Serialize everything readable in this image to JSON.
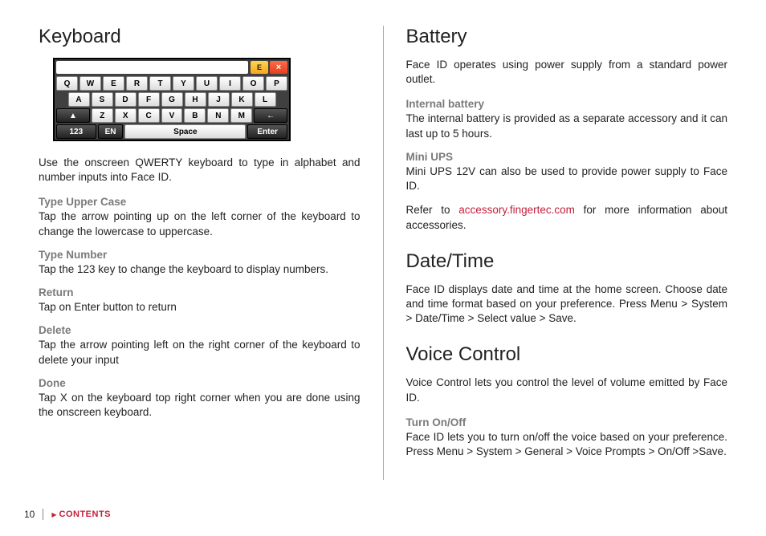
{
  "left": {
    "heading": "Keyboard",
    "keyboard": {
      "topE": "E",
      "topX": "×",
      "row1": [
        "Q",
        "W",
        "E",
        "R",
        "T",
        "Y",
        "U",
        "I",
        "O",
        "P"
      ],
      "row2": [
        "A",
        "S",
        "D",
        "F",
        "G",
        "H",
        "J",
        "K",
        "L"
      ],
      "row3Arrow": "▲",
      "row3": [
        "Z",
        "X",
        "C",
        "V",
        "B",
        "N",
        "M"
      ],
      "row3Back": "←",
      "row4_123": "123",
      "row4_en": "EN",
      "row4_space": "Space",
      "row4_enter": "Enter"
    },
    "intro": "Use the onscreen QWERTY keyboard to type in alphabet and number inputs into Face ID.",
    "subs": [
      {
        "title": "Type Upper Case",
        "text": "Tap the arrow pointing up on the left corner of the keyboard to change the lowercase to uppercase."
      },
      {
        "title": "Type Number",
        "text": "Tap the 123 key to change the keyboard to display numbers."
      },
      {
        "title": "Return",
        "text": "Tap on Enter button to return"
      },
      {
        "title": "Delete",
        "text": "Tap the arrow pointing left on the right corner of the keyboard to delete your input"
      },
      {
        "title": "Done",
        "text": "Tap X on the keyboard top right corner when you are done using the onscreen keyboard."
      }
    ]
  },
  "right": {
    "battery": {
      "heading": "Battery",
      "intro": "Face ID operates using power supply from a standard power outlet.",
      "subs": [
        {
          "title": "Internal battery",
          "text": "The internal battery is provided as a separate accessory and it can last up to 5 hours."
        },
        {
          "title": "Mini UPS",
          "text": "Mini UPS 12V can also be used to provide power supply to Face ID."
        }
      ],
      "refer_pre": "Refer to ",
      "refer_link": "accessory.fingertec.com",
      "refer_post": " for more information about accessories."
    },
    "datetime": {
      "heading": "Date/Time",
      "text": "Face ID displays date and time at the home screen. Choose date and time format based on your preference. Press Menu > System > Date/Time > Select value > Save."
    },
    "voice": {
      "heading": "Voice Control",
      "intro": "Voice Control lets you control the level of volume emitted by Face ID.",
      "subs": [
        {
          "title": "Turn On/Off",
          "text": "Face ID lets you to turn on/off the voice based on your preference. Press Menu > System > General > Voice Prompts > On/Off >Save."
        }
      ]
    }
  },
  "footer": {
    "page": "10",
    "contents": "CONTENTS"
  }
}
